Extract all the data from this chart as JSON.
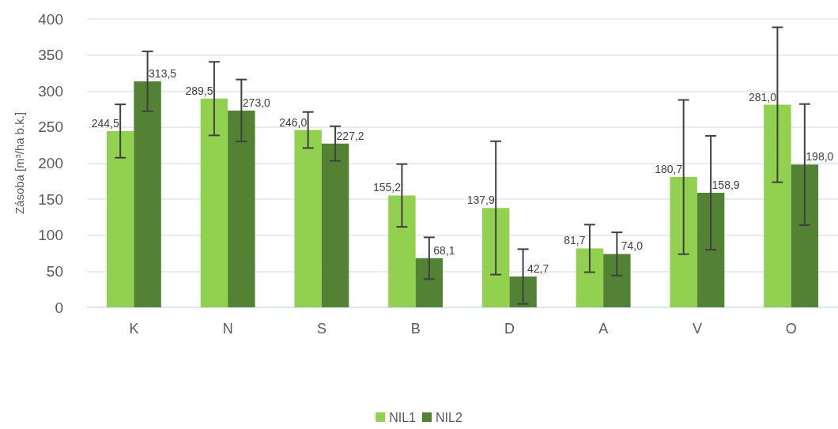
{
  "chart_data": {
    "type": "bar",
    "ylabel": "Zásoba [m³/ha b.k.]",
    "categories": [
      "K",
      "N",
      "S",
      "B",
      "D",
      "A",
      "V",
      "O"
    ],
    "series": [
      {
        "name": "NIL1",
        "color": "#92d050",
        "values": [
          244.5,
          289.5,
          246.0,
          155.2,
          137.9,
          81.7,
          180.7,
          281.0
        ],
        "errors": [
          37,
          51,
          25,
          43.5,
          92.5,
          33,
          107,
          107.5
        ],
        "value_labels": [
          "244,5",
          "289,5",
          "246,0",
          "155,2",
          "137,9",
          "81,7",
          "180,7",
          "281,0"
        ]
      },
      {
        "name": "NIL2",
        "color": "#548235",
        "values": [
          313.5,
          273.0,
          227.2,
          68.1,
          42.7,
          74.0,
          158.9,
          198.0
        ],
        "errors": [
          41.5,
          43,
          24,
          29,
          38,
          30,
          79,
          84
        ],
        "value_labels": [
          "313,5",
          "273,0",
          "227,2",
          "68,1",
          "42,7",
          "74,0",
          "158,9",
          "198,0"
        ]
      }
    ],
    "ylim": [
      0,
      400
    ],
    "yticks": [
      0,
      50,
      100,
      150,
      200,
      250,
      300,
      350,
      400
    ],
    "grid": "y",
    "legend": "bottom"
  }
}
